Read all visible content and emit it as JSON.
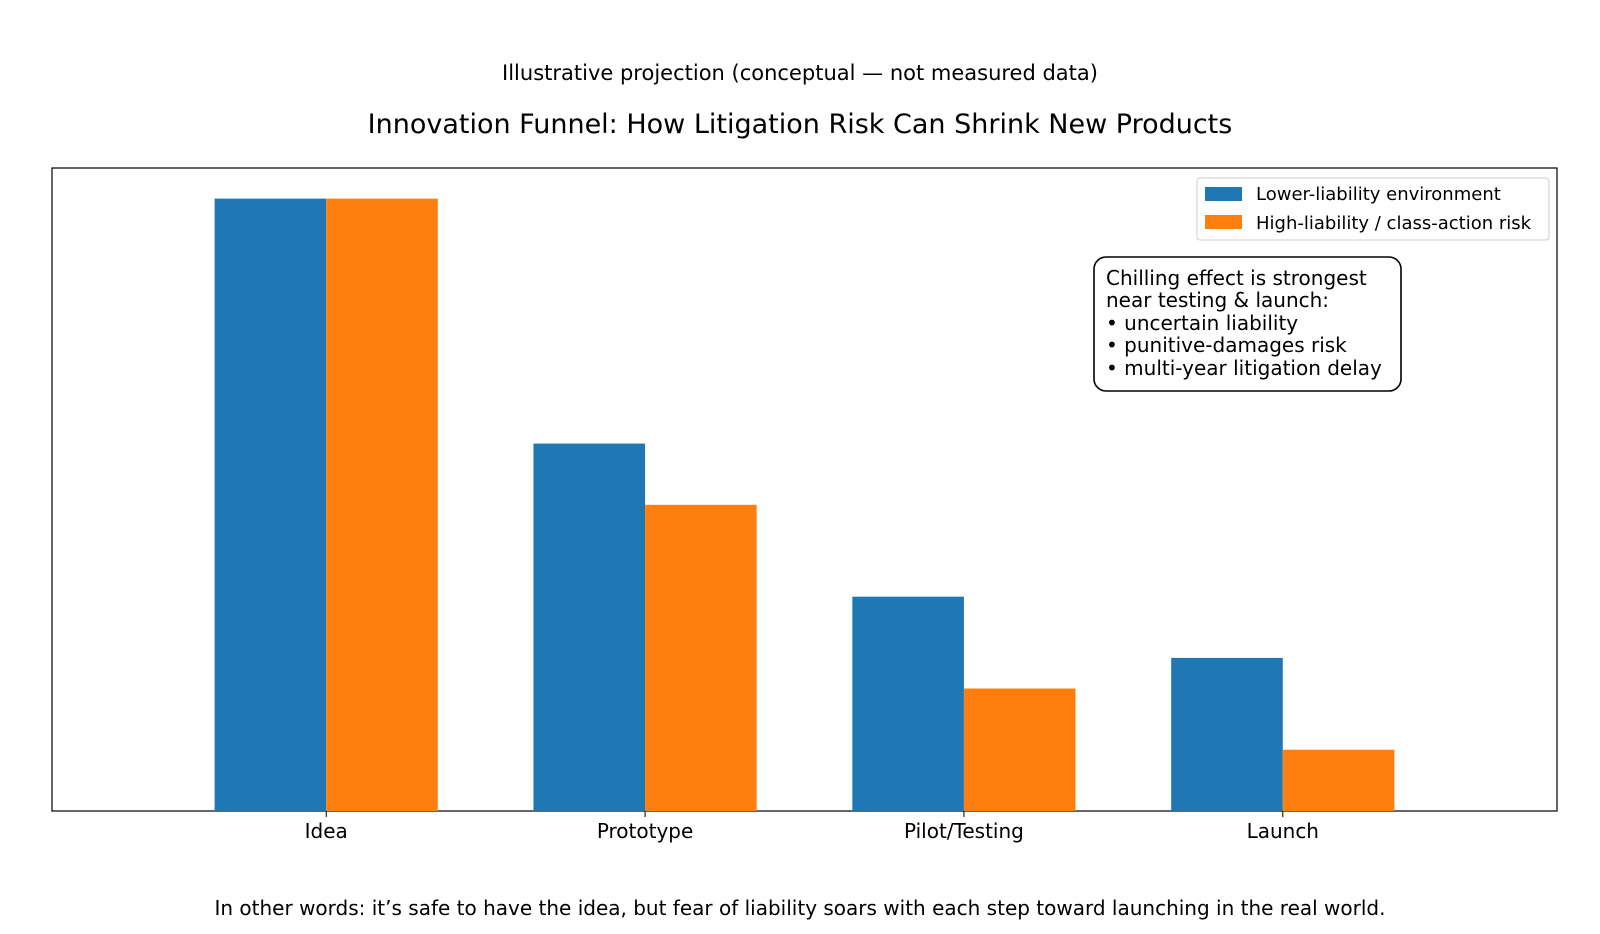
{
  "chart_data": {
    "type": "bar",
    "subtitle": "Illustrative projection (conceptual — not measured data)",
    "title": "Innovation Funnel: How Litigation Risk Can Shrink New Products",
    "footnote": "In other words: it’s safe to have the idea, but fear of liability soars with each step toward launching in the real world.",
    "xlabel": "",
    "ylabel": "",
    "ylim": [
      0,
      105
    ],
    "categories": [
      "Idea",
      "Prototype",
      "Pilot/Testing",
      "Launch"
    ],
    "series": [
      {
        "name": "Lower-liability environment",
        "color": "#1f77b4",
        "values": [
          100,
          60,
          35,
          25
        ]
      },
      {
        "name": "High-liability / class-action risk",
        "color": "#ff7f0e",
        "values": [
          100,
          50,
          20,
          10
        ]
      }
    ],
    "legend": {
      "position": "top-right"
    },
    "annotation": {
      "lines": [
        "Chilling effect is strongest",
        "near testing & launch:",
        "• uncertain liability",
        "• punitive-damages risk",
        "• multi-year litigation delay"
      ]
    }
  }
}
